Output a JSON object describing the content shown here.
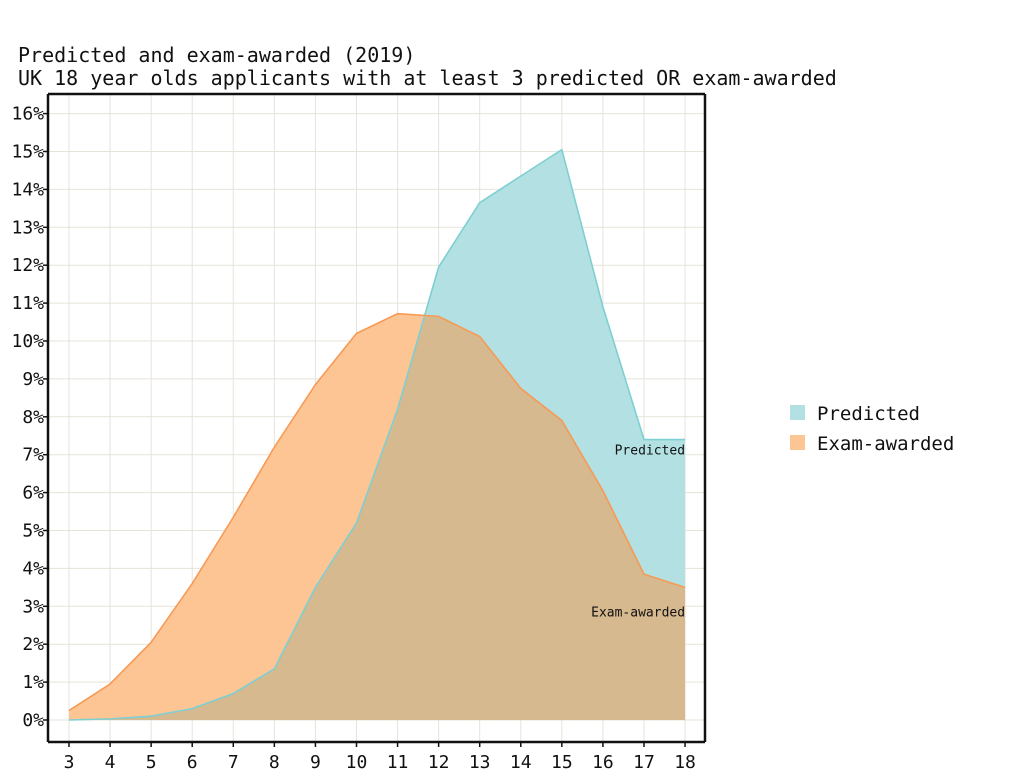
{
  "chart_data": {
    "type": "area",
    "title": "Predicted and exam-awarded (2019)",
    "subtitle": "UK 18 year olds applicants with at least 3 predicted OR exam-awarded",
    "xlabel": "",
    "ylabel": "",
    "x": [
      3,
      4,
      5,
      6,
      7,
      8,
      9,
      10,
      11,
      12,
      13,
      14,
      15,
      16,
      17,
      18
    ],
    "xlim": [
      3,
      18
    ],
    "ylim": [
      0,
      16
    ],
    "y_tick_values": [
      0,
      1,
      2,
      3,
      4,
      5,
      6,
      7,
      8,
      9,
      10,
      11,
      12,
      13,
      14,
      15,
      16
    ],
    "y_tick_labels": [
      "0%",
      "1%",
      "2%",
      "3%",
      "4%",
      "5%",
      "6%",
      "7%",
      "8%",
      "9%",
      "10%",
      "11%",
      "12%",
      "13%",
      "14%",
      "15%",
      "16%"
    ],
    "x_tick_labels": [
      "3",
      "4",
      "5",
      "6",
      "7",
      "8",
      "9",
      "10",
      "11",
      "12",
      "13",
      "14",
      "15",
      "16",
      "17",
      "18"
    ],
    "grid": true,
    "legend_position": "right",
    "series": [
      {
        "name": "Predicted",
        "label": "Predicted",
        "color": "#b3e1e3",
        "stroke": "#7ecfd2",
        "values": [
          0.0,
          0.03,
          0.1,
          0.3,
          0.7,
          1.35,
          3.5,
          5.2,
          8.2,
          11.95,
          13.65,
          14.35,
          15.05,
          10.9,
          7.4,
          7.4
        ]
      },
      {
        "name": "Exam-awarded",
        "label": "Exam-awarded",
        "color": "#fec594",
        "stroke": "#f69a55",
        "values": [
          0.25,
          0.95,
          2.05,
          3.6,
          5.35,
          7.2,
          8.85,
          10.2,
          10.72,
          10.65,
          10.12,
          8.75,
          7.9,
          6.05,
          3.85,
          3.5
        ]
      }
    ],
    "overlap_color": "#d6b98e"
  }
}
